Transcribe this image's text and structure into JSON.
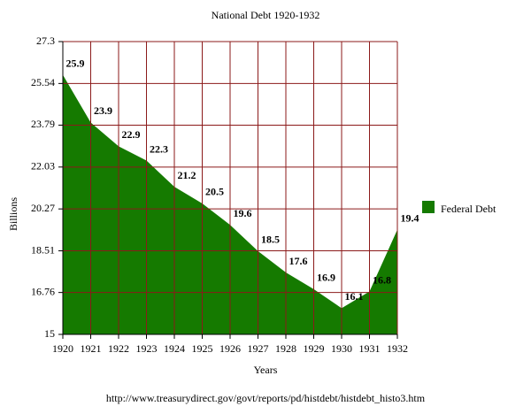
{
  "chart_data": {
    "type": "area",
    "title": "National Debt 1920-1932",
    "x_label": "Years",
    "y_label": "Billions",
    "source": "http://www.treasurydirect.gov/govt/reports/pd/histdebt/histdebt_histo3.htm",
    "x": [
      1920,
      1921,
      1922,
      1923,
      1924,
      1925,
      1926,
      1927,
      1928,
      1929,
      1930,
      1931,
      1932
    ],
    "series": [
      {
        "name": "Federal Debt",
        "color": "#157a00",
        "values": [
          25.9,
          23.9,
          22.9,
          22.3,
          21.2,
          20.5,
          19.6,
          18.5,
          17.6,
          16.9,
          16.1,
          16.8,
          19.4
        ]
      }
    ],
    "xlim": [
      1920,
      1932
    ],
    "xticks": [
      1920,
      1921,
      1922,
      1923,
      1924,
      1925,
      1926,
      1927,
      1928,
      1929,
      1930,
      1931,
      1932
    ],
    "ylim": [
      15,
      27.3
    ],
    "yticks": [
      15,
      16.76,
      18.51,
      20.27,
      22.03,
      23.79,
      25.54,
      27.3
    ],
    "grid": true,
    "grid_color": "#8b1a1a",
    "legend": "right"
  }
}
